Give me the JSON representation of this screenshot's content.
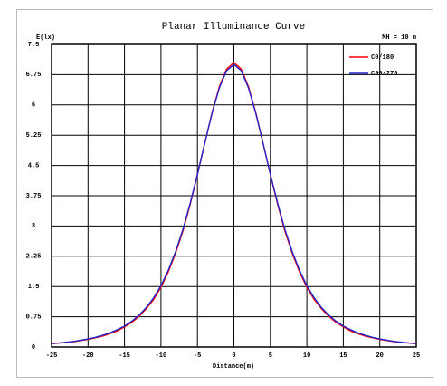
{
  "chart_data": {
    "type": "line",
    "title": "Planar Illuminance Curve",
    "y_label": "E(lx)",
    "x_label": "Distance(m)",
    "annotation": "MH = 10 m",
    "x": [
      -25,
      -24,
      -23,
      -22,
      -21,
      -20,
      -19,
      -18,
      -17,
      -16,
      -15,
      -14,
      -13,
      -12,
      -11,
      -10,
      -9,
      -8,
      -7,
      -6,
      -5,
      -4,
      -3,
      -2,
      -1,
      0,
      1,
      2,
      3,
      4,
      5,
      6,
      7,
      8,
      9,
      10,
      11,
      12,
      13,
      14,
      15,
      16,
      17,
      18,
      19,
      20,
      21,
      22,
      23,
      24,
      25
    ],
    "series": [
      {
        "name": "C0/180",
        "color": "#ff0000",
        "values": [
          0.08,
          0.1,
          0.11,
          0.13,
          0.16,
          0.19,
          0.23,
          0.27,
          0.33,
          0.4,
          0.5,
          0.61,
          0.76,
          0.95,
          1.18,
          1.48,
          1.86,
          2.32,
          2.87,
          3.53,
          4.27,
          5.05,
          5.81,
          6.45,
          6.89,
          7.05,
          6.89,
          6.45,
          5.81,
          5.05,
          4.27,
          3.53,
          2.87,
          2.32,
          1.86,
          1.48,
          1.18,
          0.95,
          0.76,
          0.61,
          0.5,
          0.4,
          0.33,
          0.27,
          0.23,
          0.19,
          0.16,
          0.13,
          0.11,
          0.1,
          0.08
        ]
      },
      {
        "name": "C90/270",
        "color": "#2222cc",
        "values": [
          0.09,
          0.1,
          0.12,
          0.14,
          0.17,
          0.2,
          0.24,
          0.29,
          0.35,
          0.43,
          0.52,
          0.64,
          0.79,
          0.98,
          1.22,
          1.52,
          1.9,
          2.36,
          2.91,
          3.56,
          4.28,
          5.05,
          5.79,
          6.42,
          6.85,
          7.0,
          6.85,
          6.42,
          5.79,
          5.05,
          4.28,
          3.56,
          2.91,
          2.36,
          1.9,
          1.52,
          1.22,
          0.98,
          0.79,
          0.64,
          0.52,
          0.43,
          0.35,
          0.29,
          0.24,
          0.2,
          0.17,
          0.14,
          0.12,
          0.1,
          0.09
        ]
      }
    ],
    "xlim": [
      -25,
      25
    ],
    "xticks": [
      -25,
      -20,
      -15,
      -10,
      -5,
      0,
      5,
      10,
      15,
      20,
      25
    ],
    "ylim": [
      0,
      7.5
    ],
    "yticks": [
      0,
      0.75,
      1.5,
      2.25,
      3,
      3.75,
      4.5,
      5.25,
      6,
      6.75,
      7.5
    ],
    "grid": true,
    "legend": "upper right"
  }
}
